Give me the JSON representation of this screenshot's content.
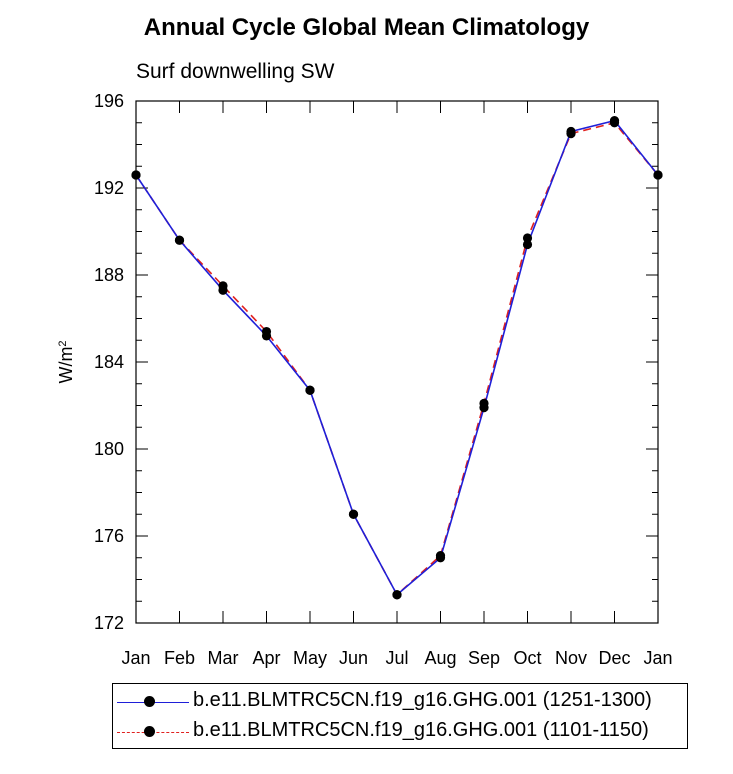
{
  "title": "Annual Cycle Global Mean Climatology",
  "subtitle": "Surf downwelling SW",
  "chart_data": {
    "type": "line",
    "title": "Annual Cycle Global Mean Climatology",
    "subtitle": "Surf downwelling SW",
    "xlabel": "",
    "ylabel": "W/m",
    "ylabel_superscript": "2",
    "categories": [
      "Jan",
      "Feb",
      "Mar",
      "Apr",
      "May",
      "Jun",
      "Jul",
      "Aug",
      "Sep",
      "Oct",
      "Nov",
      "Dec",
      "Jan"
    ],
    "ylim": [
      172,
      196
    ],
    "yticks": [
      172,
      176,
      180,
      184,
      188,
      192,
      196
    ],
    "grid": false,
    "legend_position": "bottom",
    "series": [
      {
        "name": "b.e11.BLMTRC5CN.f19_g16.GHG.001 (1251-1300)",
        "color": "#1f1fd8",
        "dash": "solid",
        "values": [
          192.6,
          189.6,
          187.3,
          185.2,
          182.7,
          177.0,
          173.3,
          175.0,
          181.9,
          189.4,
          194.6,
          195.1,
          192.6
        ]
      },
      {
        "name": "b.e11.BLMTRC5CN.f19_g16.GHG.001 (1101-1150)",
        "color": "#e0201f",
        "dash": "dashed",
        "values": [
          192.6,
          189.6,
          187.5,
          185.4,
          182.7,
          177.0,
          173.3,
          175.1,
          182.1,
          189.7,
          194.5,
          195.0,
          192.6
        ]
      }
    ]
  }
}
